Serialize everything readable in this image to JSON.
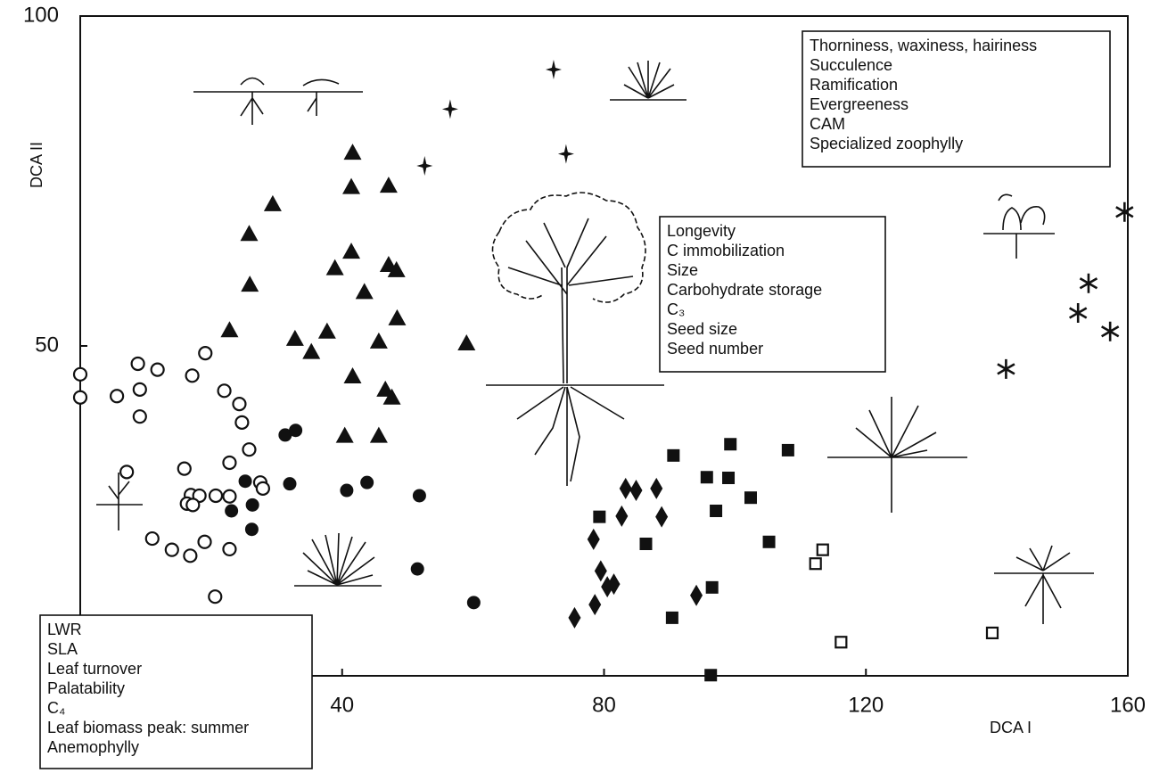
{
  "chart_data": {
    "type": "scatter",
    "x_label": "DCA I",
    "y_label": "DCA II",
    "xlim": [
      0,
      160
    ],
    "ylim": [
      0,
      100
    ],
    "xticks": [
      40,
      80,
      120,
      160
    ],
    "yticks": [
      50,
      100
    ],
    "series": [
      {
        "marker": "circle-open",
        "color": "#111111",
        "x": [
          0,
          0,
          5.6,
          8.8,
          9.1,
          9.1,
          11.8,
          17.1,
          19.1,
          22.0,
          24.3,
          24.7,
          25.8,
          22.8,
          7.1,
          15.9,
          16.9,
          18.2,
          16.3,
          17.2,
          20.7,
          22.8,
          27.5,
          27.9,
          11.0,
          14.0,
          16.8,
          19.0,
          22.8,
          20.6
        ],
        "values": [
          45.7,
          42.2,
          42.4,
          47.3,
          43.4,
          39.3,
          46.4,
          45.5,
          48.9,
          43.2,
          41.2,
          38.4,
          34.3,
          32.3,
          30.9,
          31.4,
          27.4,
          27.3,
          26.1,
          25.9,
          27.3,
          27.2,
          29.3,
          28.4,
          20.8,
          19.1,
          18.2,
          20.3,
          19.2,
          12.0
        ]
      },
      {
        "marker": "circle-filled",
        "color": "#111111",
        "x": [
          31.3,
          32.9,
          25.2,
          23.1,
          26.3,
          26.2,
          32.0,
          40.7,
          43.8,
          51.8,
          51.5,
          60.1
        ],
        "values": [
          36.5,
          37.2,
          29.5,
          25.0,
          25.9,
          22.2,
          29.1,
          28.1,
          29.3,
          27.3,
          16.2,
          11.1
        ]
      },
      {
        "marker": "triangle-filled",
        "color": "#111111",
        "x": [
          41.6,
          29.4,
          25.8,
          25.9,
          22.8,
          32.8,
          35.3,
          37.7,
          41.4,
          41.4,
          38.9,
          43.4,
          47.1,
          47.1,
          48.3,
          48.4,
          45.6,
          41.6,
          46.6,
          47.6,
          40.4,
          45.6,
          59.0
        ],
        "values": [
          79.3,
          71.5,
          67.0,
          59.3,
          52.4,
          51.1,
          49.1,
          52.2,
          74.1,
          64.3,
          61.8,
          58.2,
          74.3,
          62.3,
          61.5,
          54.2,
          50.7,
          45.4,
          43.4,
          42.2,
          36.4,
          36.4,
          50.4
        ]
      },
      {
        "marker": "diamond-filled",
        "color": "#111111",
        "x": [
          83.3,
          84.9,
          88.0,
          88.8,
          82.7,
          78.4,
          79.5,
          81.5,
          80.5,
          78.6,
          75.5,
          94.1
        ],
        "values": [
          28.4,
          28.1,
          28.4,
          24.1,
          24.2,
          20.7,
          15.9,
          13.9,
          13.5,
          10.8,
          8.8,
          12.2
        ]
      },
      {
        "marker": "square-filled",
        "color": "#111111",
        "x": [
          79.3,
          86.4,
          90.6,
          95.7,
          99.3,
          99.0,
          97.1,
          102.4,
          105.2,
          108.1,
          96.5,
          90.4,
          96.3
        ],
        "values": [
          24.1,
          20.0,
          33.4,
          30.1,
          35.1,
          30.0,
          25.0,
          27.0,
          20.3,
          34.2,
          13.4,
          8.8,
          0.1
        ]
      },
      {
        "marker": "square-open",
        "color": "#111111",
        "x": [
          113.4,
          112.3,
          116.2,
          139.3
        ],
        "values": [
          19.1,
          17.0,
          5.1,
          6.5
        ]
      },
      {
        "marker": "asterisk",
        "color": "#111111",
        "x": [
          159.5,
          154.0,
          152.4,
          157.3,
          141.4
        ],
        "values": [
          70.3,
          59.5,
          55.0,
          52.2,
          46.5
        ]
      },
      {
        "marker": "star4",
        "color": "#111111",
        "x": [
          72.3,
          56.5,
          52.6,
          74.2
        ],
        "values": [
          91.9,
          85.9,
          77.3,
          79.1
        ]
      }
    ],
    "annotations": [
      {
        "lines": [
          "Thorniness, waxiness, hairiness",
          "Succulence",
          "Ramification",
          "Evergreeness",
          "CAM",
          "Specialized zoophylly"
        ]
      },
      {
        "lines": [
          "Longevity",
          "C immobilization",
          "Size",
          "Carbohydrate storage",
          "C₃",
          "Seed size",
          "Seed number"
        ]
      },
      {
        "lines": [
          "LWR",
          "SLA",
          "Leaf turnover",
          "Palatability",
          "C₄",
          "Leaf biomass peak: summer",
          "Anemophylly"
        ]
      }
    ]
  }
}
